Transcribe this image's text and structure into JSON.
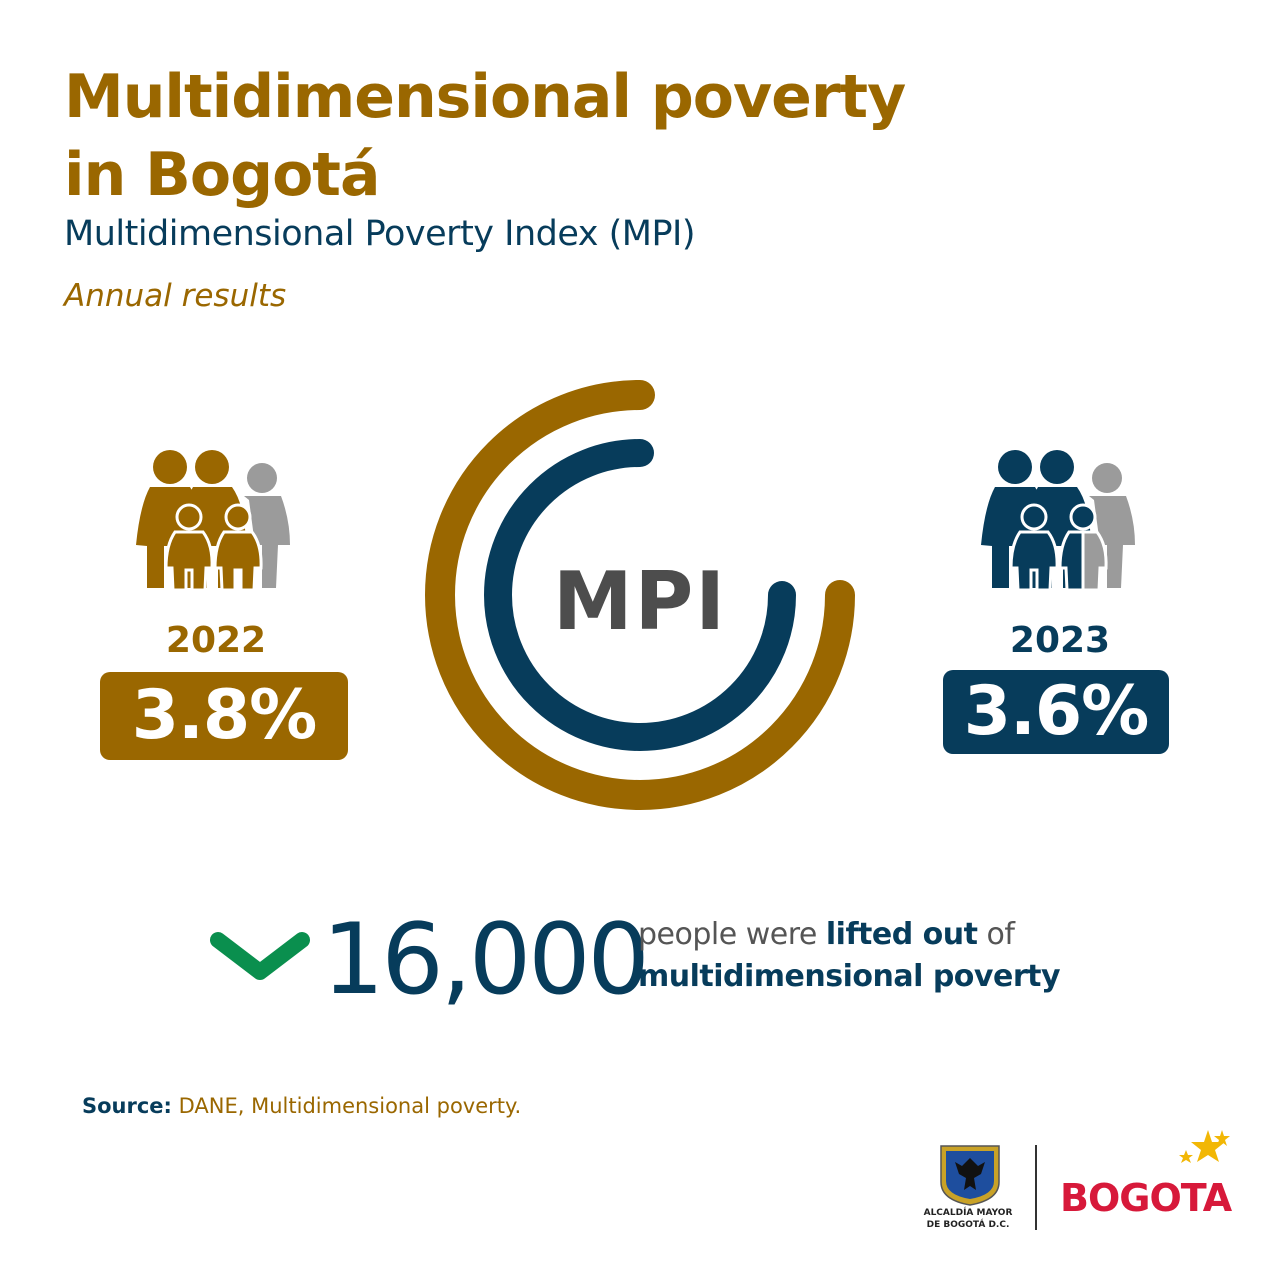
{
  "header": {
    "title_line1": "Multidimensional poverty",
    "title_line2": "in Bogotá",
    "subtitle": "Multidimensional Poverty Index (MPI)",
    "period": "Annual results"
  },
  "colors": {
    "gold": "#9A6700",
    "navy": "#073C5B",
    "gray": "#9B9B9B",
    "green": "#0A8F4E",
    "red": "#D7193A"
  },
  "chart_data": {
    "type": "pie",
    "center_label": "MPI",
    "unit": "%",
    "categories": [
      "2022",
      "2023"
    ],
    "values": [
      3.8,
      3.6
    ],
    "value_labels": [
      "3.8%",
      "3.6%"
    ],
    "series_colors": [
      "#9A6700",
      "#073C5B"
    ]
  },
  "highlight": {
    "number": "16,000",
    "text_before": "people were ",
    "text_bold1": "lifted out",
    "text_after": " of",
    "text_bold2": "multidimensional poverty",
    "arrow_icon": "chevron-down-icon"
  },
  "footer": {
    "source_label": "Source:",
    "source_text": " DANE, Multidimensional poverty.",
    "alcaldia_line1": "ALCALDÍA MAYOR",
    "alcaldia_line2": "DE BOGOTÁ D.C.",
    "bogota_logo": "BOGOTA"
  }
}
